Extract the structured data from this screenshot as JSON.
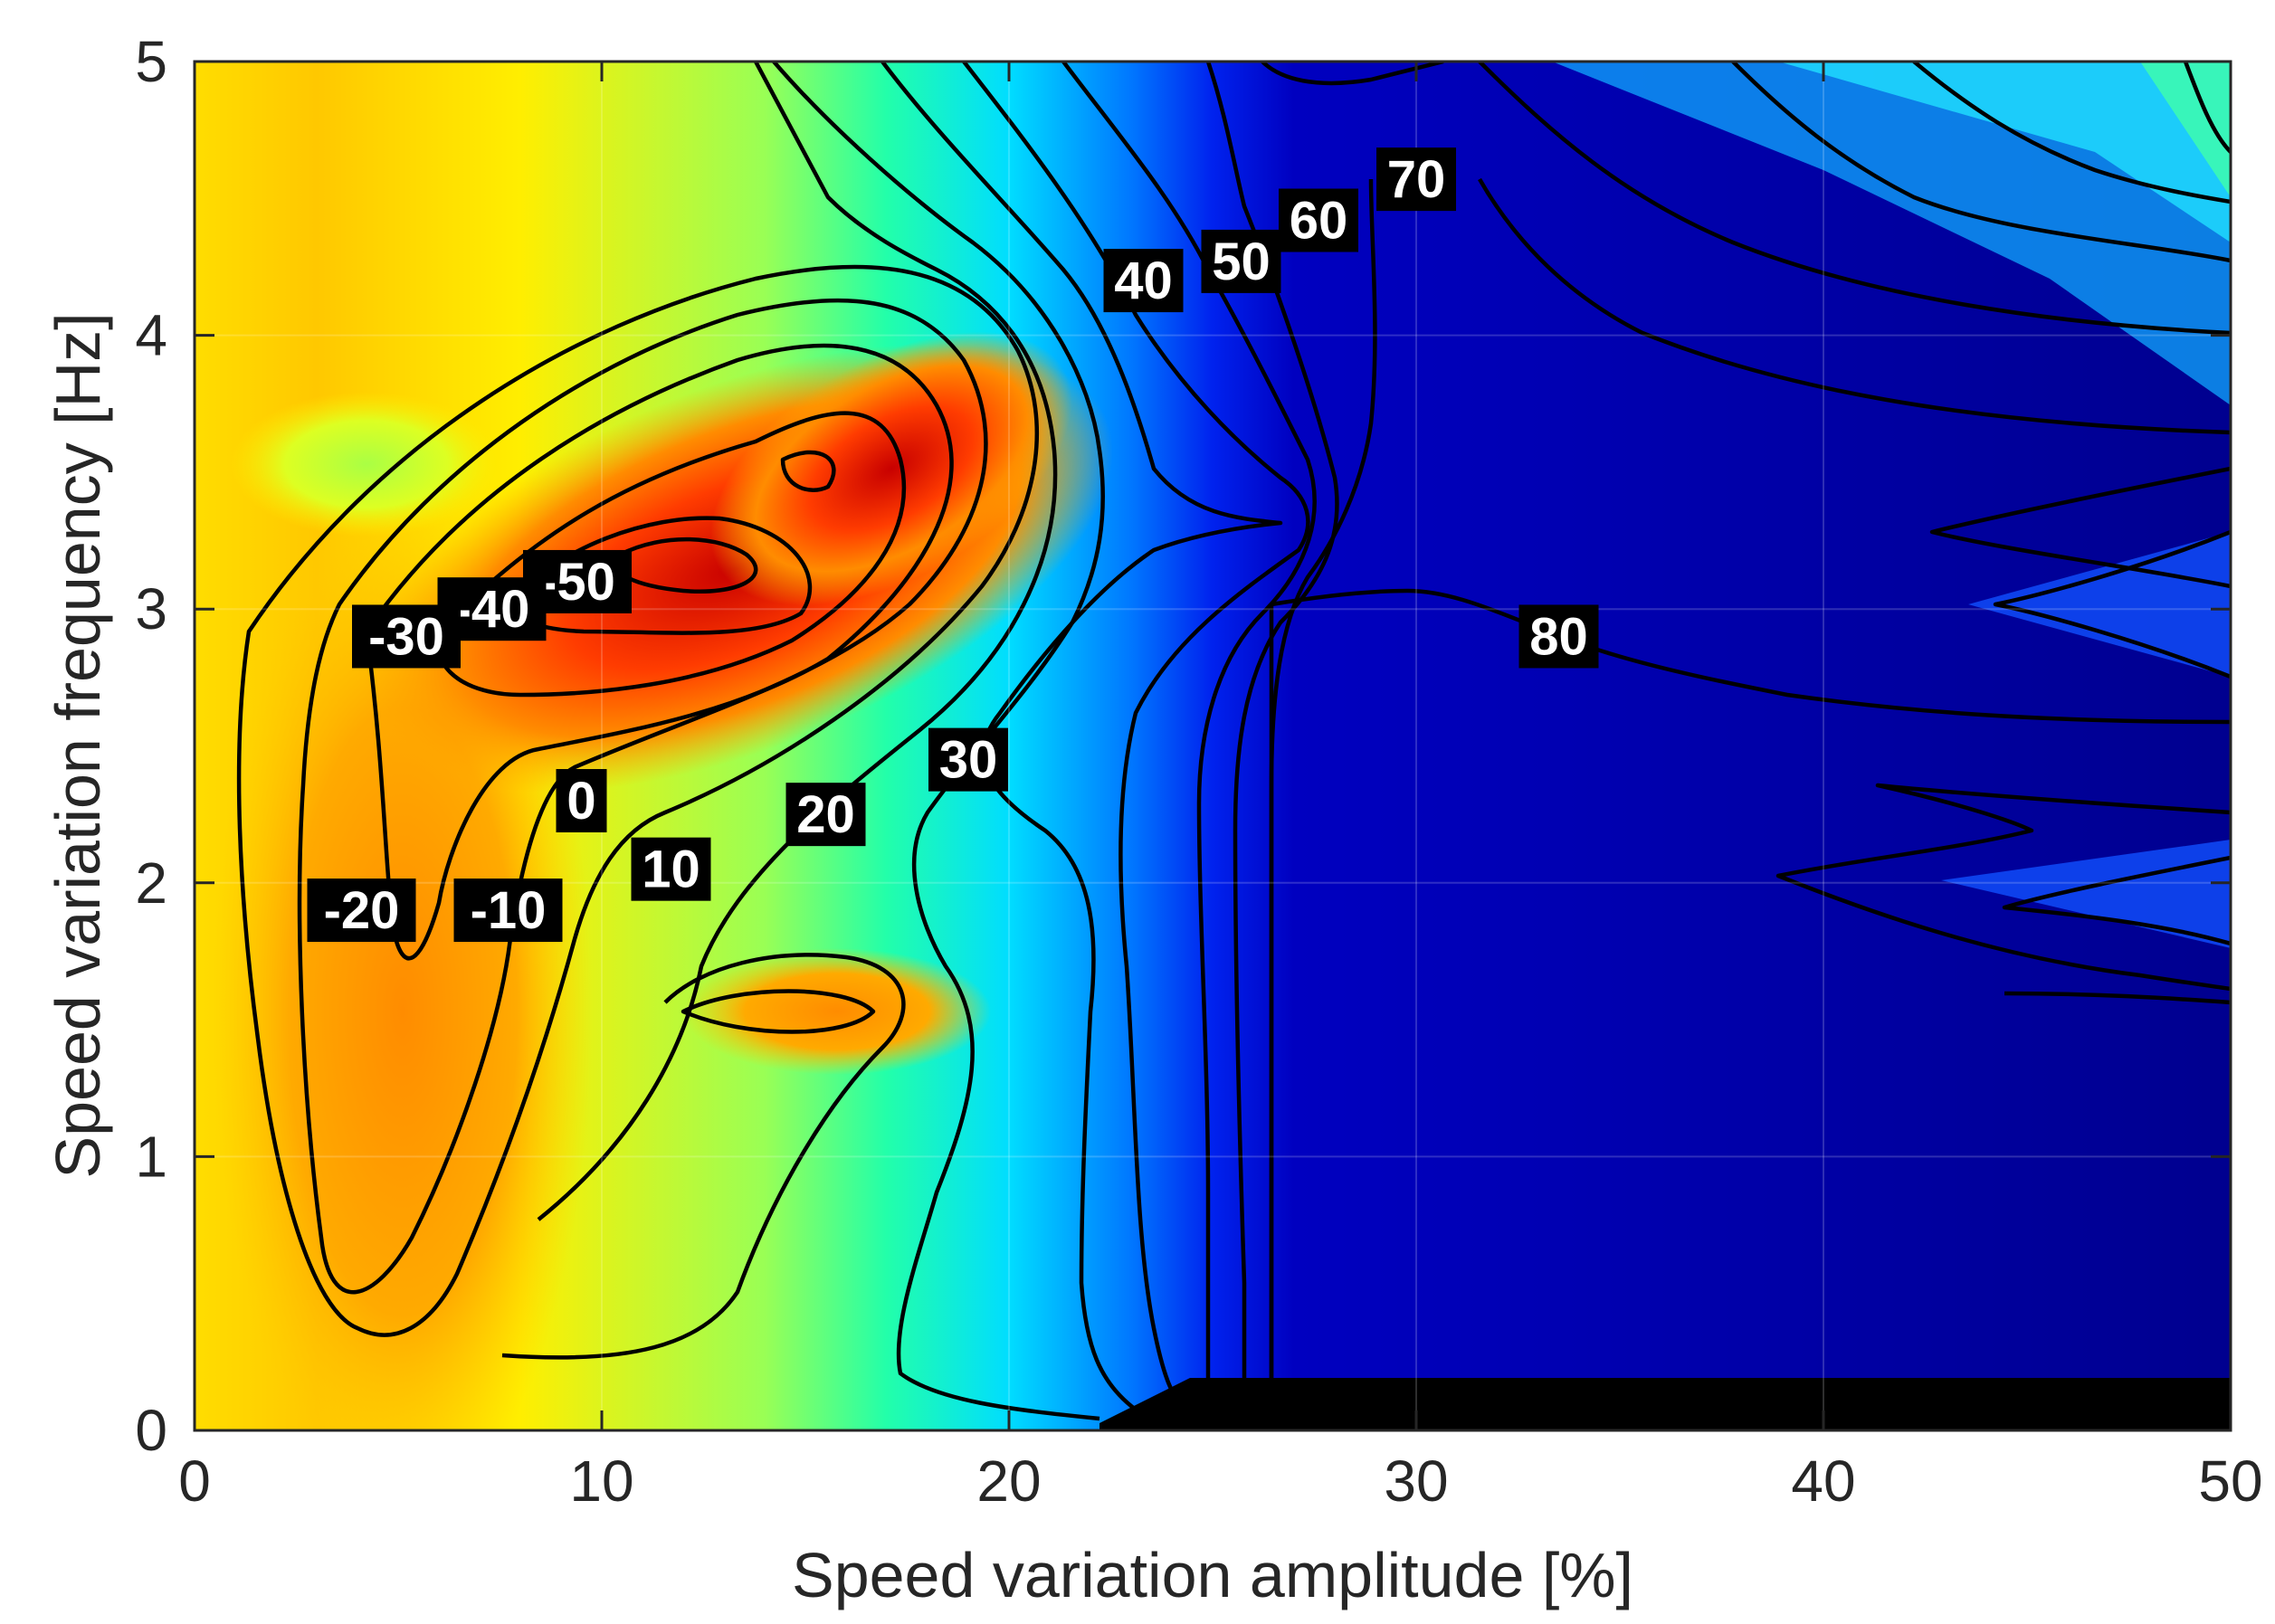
{
  "chart_data": {
    "type": "heatmap",
    "subtype": "filled-contour",
    "xlabel": "Speed variation amplitude [%]",
    "ylabel": "Speed variation frequency [Hz]",
    "xlim": [
      0,
      50
    ],
    "ylim": [
      0,
      5
    ],
    "x_ticks": [
      "0",
      "10",
      "20",
      "30",
      "40",
      "50"
    ],
    "y_ticks": [
      "0",
      "1",
      "2",
      "3",
      "4",
      "5"
    ],
    "grid": true,
    "colormap": "jet (reversed: red = low, dark blue = high)",
    "colors": {
      "lowest": "#d41a00",
      "low": "#ffa500",
      "mid_low": "#ffff00",
      "mid": "#66ff66",
      "mid_high": "#00ffff",
      "high": "#0040ff",
      "highest": "#00008a",
      "contour_line": "#000000",
      "label_box": "#000000",
      "label_text": "#ffffff"
    },
    "contour_levels": [
      -50,
      -40,
      -30,
      -20,
      -10,
      0,
      10,
      20,
      30,
      40,
      50,
      60,
      70,
      80
    ],
    "contour_labels": [
      {
        "text": "-50",
        "x": 9.4,
        "y": 3.1
      },
      {
        "text": "-40",
        "x": 7.3,
        "y": 3.0
      },
      {
        "text": "-30",
        "x": 5.2,
        "y": 2.9
      },
      {
        "text": "-20",
        "x": 4.1,
        "y": 1.9
      },
      {
        "text": "-10",
        "x": 7.7,
        "y": 1.9
      },
      {
        "text": "0",
        "x": 9.5,
        "y": 2.3
      },
      {
        "text": "10",
        "x": 11.7,
        "y": 2.05
      },
      {
        "text": "20",
        "x": 15.5,
        "y": 2.25
      },
      {
        "text": "30",
        "x": 19.0,
        "y": 2.45
      },
      {
        "text": "40",
        "x": 23.3,
        "y": 4.2
      },
      {
        "text": "50",
        "x": 25.7,
        "y": 4.27
      },
      {
        "text": "60",
        "x": 27.6,
        "y": 4.42
      },
      {
        "text": "70",
        "x": 30.0,
        "y": 4.57
      },
      {
        "text": "80",
        "x": 33.5,
        "y": 2.9
      }
    ]
  }
}
